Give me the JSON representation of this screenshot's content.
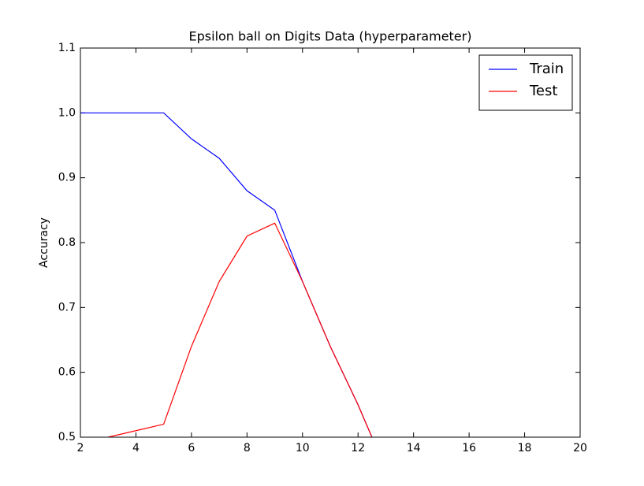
{
  "chart_data": {
    "type": "line",
    "title": "Epsilon ball on Digits Data (hyperparameter)",
    "y_label": "Accuracy",
    "x": [
      2,
      3,
      4,
      5,
      6,
      7,
      8,
      9,
      10,
      11,
      12,
      13
    ],
    "series": [
      {
        "name": "Train",
        "color": "#0000ff",
        "values": [
          1.0,
          1.0,
          1.0,
          1.0,
          0.96,
          0.93,
          0.88,
          0.85,
          0.74,
          0.64,
          0.55,
          0.45
        ]
      },
      {
        "name": "Test",
        "color": "#ff0000",
        "values": [
          null,
          0.5,
          0.51,
          0.52,
          0.64,
          0.74,
          0.81,
          0.83,
          0.74,
          0.64,
          0.55,
          0.45
        ]
      }
    ],
    "xlim": [
      2,
      20
    ],
    "xticks": [
      2,
      4,
      6,
      8,
      10,
      12,
      14,
      16,
      18,
      20
    ],
    "ylim": [
      0.5,
      1.1
    ],
    "yticks": [
      0.5,
      0.6,
      0.7,
      0.8,
      0.9,
      {
        "value": 1.0,
        "label": "1.0"
      },
      1.1
    ],
    "legend": "upper right",
    "grid": false
  }
}
